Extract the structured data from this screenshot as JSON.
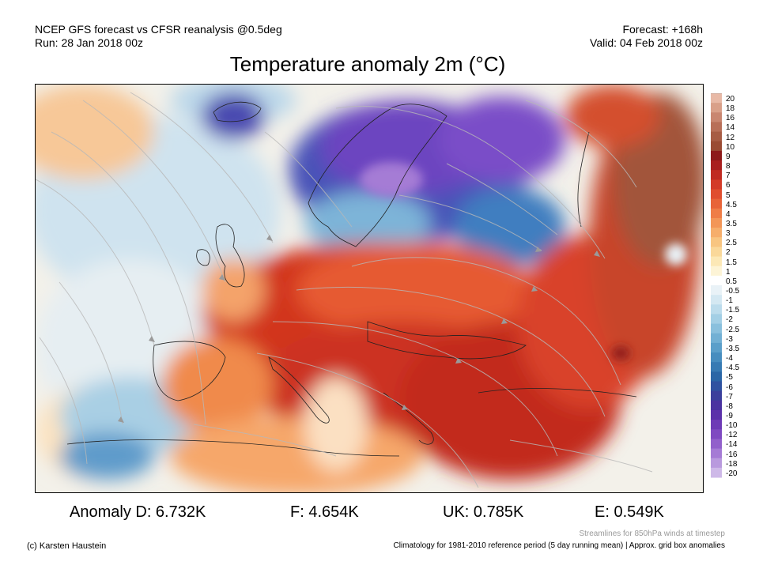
{
  "header": {
    "model_line": "NCEP GFS forecast vs CFSR reanalysis @0.5deg",
    "run_line": "Run: 28 Jan 2018 00z",
    "forecast_line": "Forecast: +168h",
    "valid_line": "Valid: 04 Feb 2018 00z"
  },
  "title": "Temperature anomaly 2m (°C)",
  "colorbar": {
    "labels": [
      "20",
      "18",
      "16",
      "14",
      "12",
      "10",
      "9",
      "8",
      "7",
      "6",
      "5",
      "4.5",
      "4",
      "3.5",
      "3",
      "2.5",
      "2",
      "1.5",
      "1",
      "0.5",
      "-0.5",
      "-1",
      "-1.5",
      "-2",
      "-2.5",
      "-3",
      "-3.5",
      "-4",
      "-4.5",
      "-5",
      "-6",
      "-7",
      "-8",
      "-9",
      "-10",
      "-12",
      "-14",
      "-16",
      "-18",
      "-20"
    ],
    "colors": [
      "#e8b9a6",
      "#d9a089",
      "#c98670",
      "#b86f58",
      "#a75c44",
      "#9a4b33",
      "#8d1a1a",
      "#a91f1f",
      "#c02a22",
      "#d33a27",
      "#e04e2e",
      "#e86438",
      "#ef7d46",
      "#f39657",
      "#f6ae6b",
      "#f8c581",
      "#fad89a",
      "#fce8b6",
      "#fdf4d6",
      "#ffffff",
      "#e9f2f7",
      "#d4e8f2",
      "#bcdcec",
      "#a3cfe5",
      "#8ac0dd",
      "#72b0d4",
      "#5b9fca",
      "#478dbf",
      "#377ab3",
      "#2a66a6",
      "#2f52a0",
      "#3b3f9c",
      "#4a33a0",
      "#5c31aa",
      "#6e3ab6",
      "#7f4ac1",
      "#9260cb",
      "#a57bd5",
      "#b99ade",
      "#ceb9e8"
    ]
  },
  "stats": [
    {
      "label": "Anomaly D: 6.732K"
    },
    {
      "label": "F: 4.654K"
    },
    {
      "label": "UK: 0.785K"
    },
    {
      "label": "E: 0.549K"
    }
  ],
  "footer": {
    "streamline_note": "Streamlines for 850hPa winds at timestep",
    "copyright": "(c) Karsten Haustein",
    "climatology": "Climatology for 1981-2010 reference period (5 day running mean) | Approx. grid box anomalies"
  }
}
